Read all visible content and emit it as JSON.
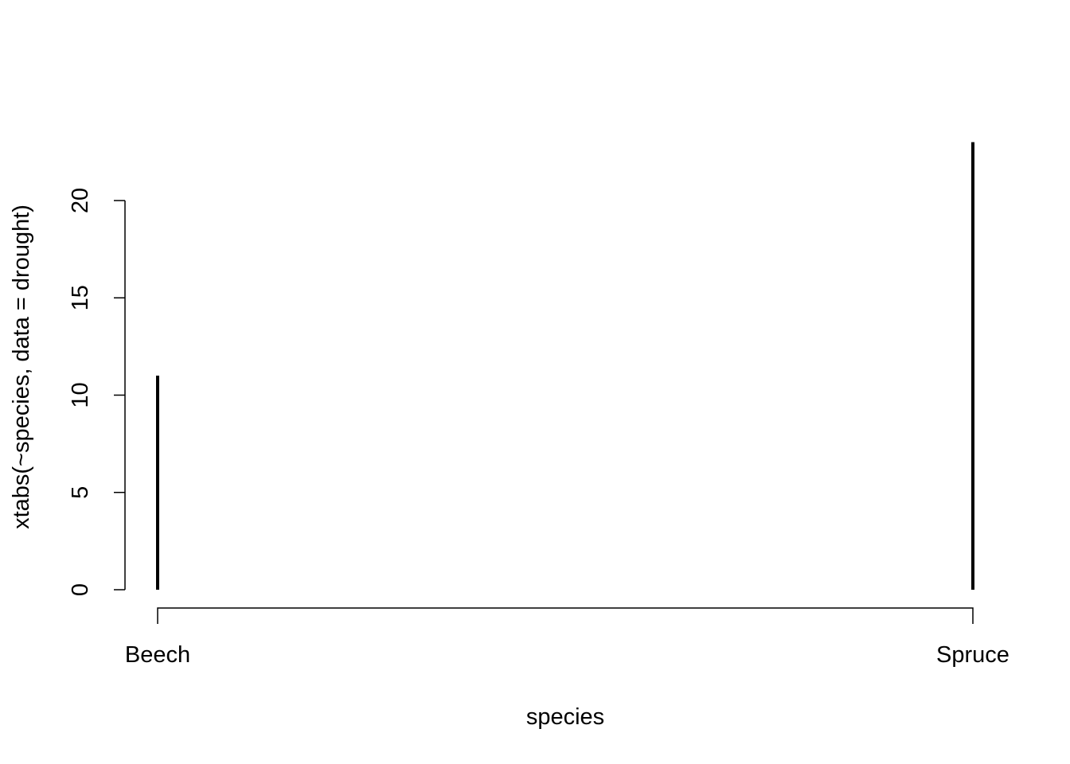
{
  "chart_data": {
    "type": "bar",
    "style": "spikes",
    "categories": [
      "Beech",
      "Spruce"
    ],
    "values": [
      11,
      23
    ],
    "title": "",
    "xlabel": "species",
    "ylabel": "xtabs(~species, data = drought)",
    "yticks": [
      "0",
      "5",
      "10",
      "15",
      "20"
    ],
    "ylim": [
      0,
      23
    ],
    "grid": false,
    "bar_color": "#000000"
  }
}
